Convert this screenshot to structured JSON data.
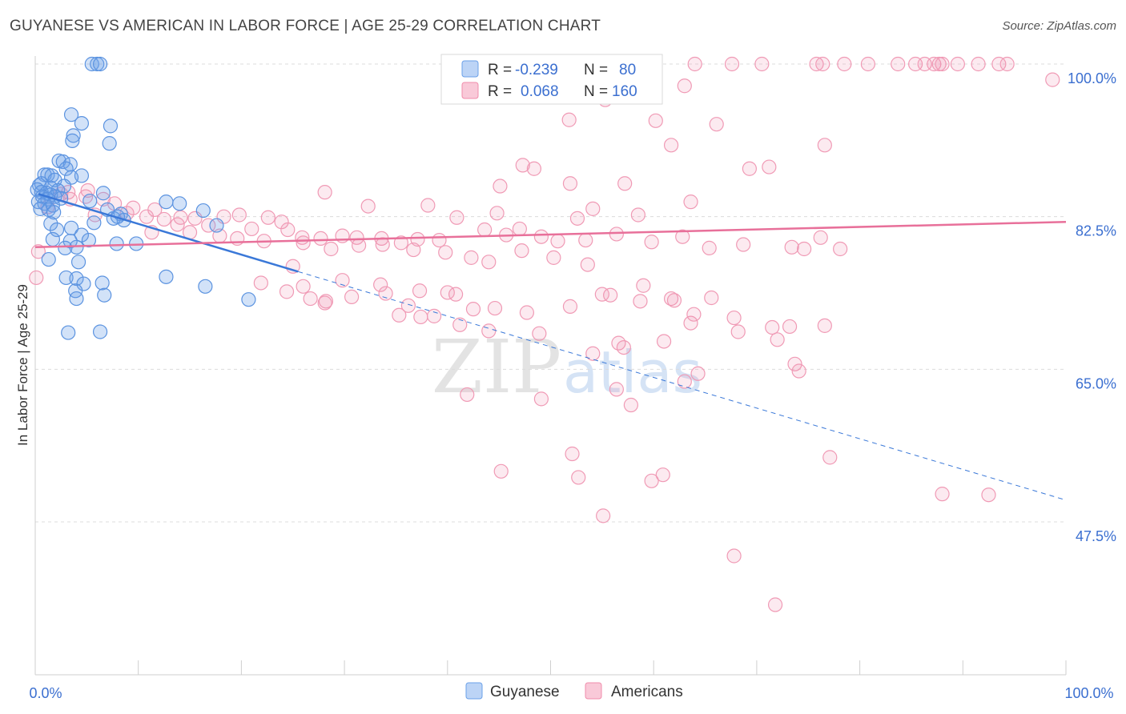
{
  "title": "GUYANESE VS AMERICAN IN LABOR FORCE | AGE 25-29 CORRELATION CHART",
  "source": "Source: ZipAtlas.com",
  "watermark": {
    "zip": "ZIP",
    "atlas": "atlas"
  },
  "colors": {
    "guyanese": "#6aa0e8",
    "guyanese_line": "#3a78d8",
    "americans": "#f08cab",
    "americans_line": "#e8709a",
    "tick": "#3b6fd0"
  },
  "legend": {
    "rows": [
      {
        "r_label": "R = ",
        "r_value": "-0.239",
        "n_label": "N = ",
        "n_value": "80"
      },
      {
        "r_label": "R = ",
        "r_value": "0.068",
        "n_label": "N = ",
        "n_value": "160"
      }
    ]
  },
  "chart_data": {
    "type": "scatter",
    "xlabel": "",
    "ylabel": "In Labor Force | Age 25-29",
    "xlim": [
      0,
      100
    ],
    "ylim": [
      32,
      100
    ],
    "x_tick_labels": [
      "0.0%",
      "100.0%"
    ],
    "y_ticks": [
      {
        "value": 47.5,
        "label": "47.5%"
      },
      {
        "value": 65.0,
        "label": "65.0%"
      },
      {
        "value": 82.5,
        "label": "82.5%"
      },
      {
        "value": 100.0,
        "label": "100.0%"
      }
    ],
    "grid": true,
    "legend_position": "top-center",
    "series": [
      {
        "name": "Guyanese",
        "trend": {
          "x0": 0.3,
          "y0": 85.1,
          "x1": 25.5,
          "y1": 76.2,
          "dash_x1": 100,
          "dash_y1": 50.0
        },
        "points": [
          [
            5.5,
            100
          ],
          [
            6.0,
            100
          ],
          [
            6.3,
            100
          ],
          [
            3.5,
            94.2
          ],
          [
            4.5,
            93.2
          ],
          [
            7.3,
            92.9
          ],
          [
            3.7,
            91.8
          ],
          [
            3.6,
            91.2
          ],
          [
            7.2,
            90.9
          ],
          [
            2.3,
            88.9
          ],
          [
            2.7,
            88.8
          ],
          [
            3.4,
            88.5
          ],
          [
            3.0,
            88.0
          ],
          [
            0.9,
            87.3
          ],
          [
            1.2,
            87.3
          ],
          [
            1.6,
            87.2
          ],
          [
            4.5,
            87.2
          ],
          [
            3.5,
            87.0
          ],
          [
            1.9,
            86.7
          ],
          [
            0.4,
            86.1
          ],
          [
            0.6,
            86.3
          ],
          [
            1.5,
            85.8
          ],
          [
            2.8,
            86.0
          ],
          [
            2.2,
            85.5
          ],
          [
            0.2,
            85.6
          ],
          [
            0.6,
            85.3
          ],
          [
            1.1,
            85.2
          ],
          [
            1.5,
            85.0
          ],
          [
            1.9,
            84.8
          ],
          [
            0.7,
            84.8
          ],
          [
            1.2,
            84.5
          ],
          [
            2.5,
            84.6
          ],
          [
            0.3,
            84.2
          ],
          [
            0.9,
            84.0
          ],
          [
            1.7,
            83.8
          ],
          [
            0.5,
            83.4
          ],
          [
            1.3,
            83.3
          ],
          [
            1.8,
            83.0
          ],
          [
            6.6,
            85.2
          ],
          [
            5.3,
            84.3
          ],
          [
            12.7,
            84.2
          ],
          [
            14.0,
            84.0
          ],
          [
            16.3,
            83.2
          ],
          [
            7.0,
            83.3
          ],
          [
            8.3,
            82.8
          ],
          [
            7.6,
            82.3
          ],
          [
            1.5,
            81.7
          ],
          [
            5.7,
            81.8
          ],
          [
            8.6,
            82.1
          ],
          [
            8.0,
            82.5
          ],
          [
            17.6,
            81.5
          ],
          [
            3.5,
            81.2
          ],
          [
            2.1,
            81.0
          ],
          [
            4.5,
            80.4
          ],
          [
            3.4,
            79.7
          ],
          [
            1.7,
            79.9
          ],
          [
            5.2,
            79.8
          ],
          [
            7.9,
            79.4
          ],
          [
            9.8,
            79.4
          ],
          [
            2.9,
            78.9
          ],
          [
            4.0,
            79.0
          ],
          [
            1.3,
            77.6
          ],
          [
            4.2,
            77.3
          ],
          [
            12.7,
            75.6
          ],
          [
            3.0,
            75.5
          ],
          [
            4.0,
            75.4
          ],
          [
            6.5,
            74.9
          ],
          [
            4.7,
            74.8
          ],
          [
            16.5,
            74.5
          ],
          [
            3.9,
            74.0
          ],
          [
            6.7,
            73.5
          ],
          [
            4.0,
            73.1
          ],
          [
            20.7,
            73.0
          ],
          [
            3.2,
            69.2
          ],
          [
            6.3,
            69.3
          ]
        ]
      },
      {
        "name": "Americans",
        "trend": {
          "x0": 0,
          "y0": 79.0,
          "x1": 100,
          "y1": 81.9
        },
        "points": [
          [
            64.0,
            100
          ],
          [
            67.6,
            100
          ],
          [
            70.5,
            100
          ],
          [
            75.8,
            100
          ],
          [
            76.4,
            100
          ],
          [
            78.5,
            100
          ],
          [
            80.8,
            100
          ],
          [
            83.7,
            100
          ],
          [
            85.4,
            100
          ],
          [
            86.3,
            100
          ],
          [
            87.2,
            100
          ],
          [
            87.7,
            100
          ],
          [
            88.0,
            100
          ],
          [
            89.5,
            100
          ],
          [
            91.5,
            100
          ],
          [
            93.5,
            100
          ],
          [
            94.3,
            100
          ],
          [
            98.7,
            98.2
          ],
          [
            63.0,
            97.5
          ],
          [
            55.3,
            95.9
          ],
          [
            51.8,
            93.6
          ],
          [
            60.2,
            93.5
          ],
          [
            66.1,
            93.1
          ],
          [
            61.7,
            90.7
          ],
          [
            76.6,
            90.7
          ],
          [
            47.3,
            88.4
          ],
          [
            48.4,
            88.0
          ],
          [
            69.3,
            88.0
          ],
          [
            71.2,
            88.2
          ],
          [
            45.1,
            86.0
          ],
          [
            51.9,
            86.3
          ],
          [
            57.2,
            86.3
          ],
          [
            28.1,
            85.3
          ],
          [
            63.6,
            84.2
          ],
          [
            32.3,
            83.7
          ],
          [
            38.1,
            83.8
          ],
          [
            54.1,
            83.4
          ],
          [
            40.9,
            82.4
          ],
          [
            44.8,
            82.9
          ],
          [
            58.5,
            82.7
          ],
          [
            52.6,
            82.3
          ],
          [
            3.2,
            85.3
          ],
          [
            5.1,
            85.5
          ],
          [
            6.6,
            84.5
          ],
          [
            2.5,
            85.1
          ],
          [
            4.9,
            84.8
          ],
          [
            3.4,
            84.5
          ],
          [
            7.7,
            84.0
          ],
          [
            1.2,
            83.6
          ],
          [
            9.5,
            83.5
          ],
          [
            11.6,
            83.3
          ],
          [
            8.9,
            82.9
          ],
          [
            5.8,
            82.7
          ],
          [
            10.8,
            82.5
          ],
          [
            12.5,
            82.2
          ],
          [
            14.1,
            82.4
          ],
          [
            15.5,
            82.3
          ],
          [
            18.3,
            82.5
          ],
          [
            19.8,
            82.7
          ],
          [
            22.6,
            82.4
          ],
          [
            23.9,
            81.9
          ],
          [
            13.8,
            81.6
          ],
          [
            16.8,
            81.5
          ],
          [
            21.0,
            81.1
          ],
          [
            24.5,
            81.0
          ],
          [
            25.9,
            80.1
          ],
          [
            27.7,
            80.0
          ],
          [
            29.8,
            80.3
          ],
          [
            31.2,
            80.1
          ],
          [
            33.6,
            80.0
          ],
          [
            35.5,
            79.5
          ],
          [
            37.1,
            79.9
          ],
          [
            39.2,
            79.8
          ],
          [
            43.6,
            81.0
          ],
          [
            45.7,
            80.4
          ],
          [
            47.0,
            81.1
          ],
          [
            49.1,
            80.2
          ],
          [
            50.7,
            79.7
          ],
          [
            53.4,
            79.8
          ],
          [
            56.4,
            80.5
          ],
          [
            59.8,
            79.6
          ],
          [
            62.8,
            80.2
          ],
          [
            65.4,
            78.9
          ],
          [
            68.7,
            79.3
          ],
          [
            73.4,
            79.0
          ],
          [
            74.6,
            78.8
          ],
          [
            76.2,
            80.1
          ],
          [
            78.1,
            78.8
          ],
          [
            11.3,
            80.7
          ],
          [
            15.0,
            80.7
          ],
          [
            17.9,
            80.3
          ],
          [
            19.6,
            80.0
          ],
          [
            22.2,
            79.7
          ],
          [
            26.0,
            79.5
          ],
          [
            28.7,
            78.8
          ],
          [
            31.4,
            79.2
          ],
          [
            33.7,
            79.3
          ],
          [
            36.7,
            78.7
          ],
          [
            39.8,
            78.4
          ],
          [
            42.3,
            77.8
          ],
          [
            44.0,
            77.3
          ],
          [
            47.2,
            78.6
          ],
          [
            50.3,
            77.8
          ],
          [
            53.6,
            77.0
          ],
          [
            0.3,
            78.5
          ],
          [
            0.1,
            75.5
          ],
          [
            25.0,
            76.8
          ],
          [
            29.8,
            75.2
          ],
          [
            33.5,
            74.7
          ],
          [
            37.3,
            74.0
          ],
          [
            40.8,
            73.6
          ],
          [
            44.6,
            72.0
          ],
          [
            47.7,
            71.5
          ],
          [
            51.9,
            72.2
          ],
          [
            55.8,
            73.5
          ],
          [
            58.7,
            72.8
          ],
          [
            61.7,
            73.1
          ],
          [
            63.6,
            70.3
          ],
          [
            65.6,
            73.2
          ],
          [
            26.0,
            74.5
          ],
          [
            28.2,
            72.8
          ],
          [
            30.7,
            73.3
          ],
          [
            34.0,
            73.7
          ],
          [
            35.3,
            71.2
          ],
          [
            37.4,
            71.0
          ],
          [
            40.0,
            73.8
          ],
          [
            42.5,
            71.9
          ],
          [
            44.0,
            69.4
          ],
          [
            48.9,
            69.1
          ],
          [
            55.0,
            73.6
          ],
          [
            59.0,
            74.6
          ],
          [
            62.0,
            72.9
          ],
          [
            63.9,
            71.3
          ],
          [
            67.8,
            70.9
          ],
          [
            71.5,
            69.8
          ],
          [
            73.2,
            69.9
          ],
          [
            76.6,
            70.0
          ],
          [
            21.9,
            74.9
          ],
          [
            24.4,
            73.9
          ],
          [
            26.7,
            73.1
          ],
          [
            28.1,
            72.6
          ],
          [
            36.2,
            72.3
          ],
          [
            38.7,
            71.1
          ],
          [
            41.2,
            70.1
          ],
          [
            54.1,
            66.8
          ],
          [
            56.6,
            68.0
          ],
          [
            57.1,
            67.5
          ],
          [
            61.0,
            68.2
          ],
          [
            64.3,
            64.5
          ],
          [
            63.0,
            63.6
          ],
          [
            68.2,
            69.3
          ],
          [
            72.0,
            68.4
          ],
          [
            73.7,
            65.6
          ],
          [
            74.1,
            64.8
          ],
          [
            41.9,
            62.1
          ],
          [
            49.1,
            61.6
          ],
          [
            56.4,
            62.7
          ],
          [
            57.8,
            60.9
          ],
          [
            52.1,
            55.3
          ],
          [
            45.2,
            53.3
          ],
          [
            52.7,
            52.6
          ],
          [
            55.1,
            48.2
          ],
          [
            59.8,
            52.2
          ],
          [
            60.9,
            52.9
          ],
          [
            77.1,
            54.9
          ],
          [
            88.0,
            50.7
          ],
          [
            92.5,
            50.6
          ],
          [
            67.8,
            43.6
          ],
          [
            71.8,
            38.0
          ]
        ]
      }
    ]
  },
  "bottom_legend": [
    {
      "label": "Guyanese"
    },
    {
      "label": "Americans"
    }
  ]
}
